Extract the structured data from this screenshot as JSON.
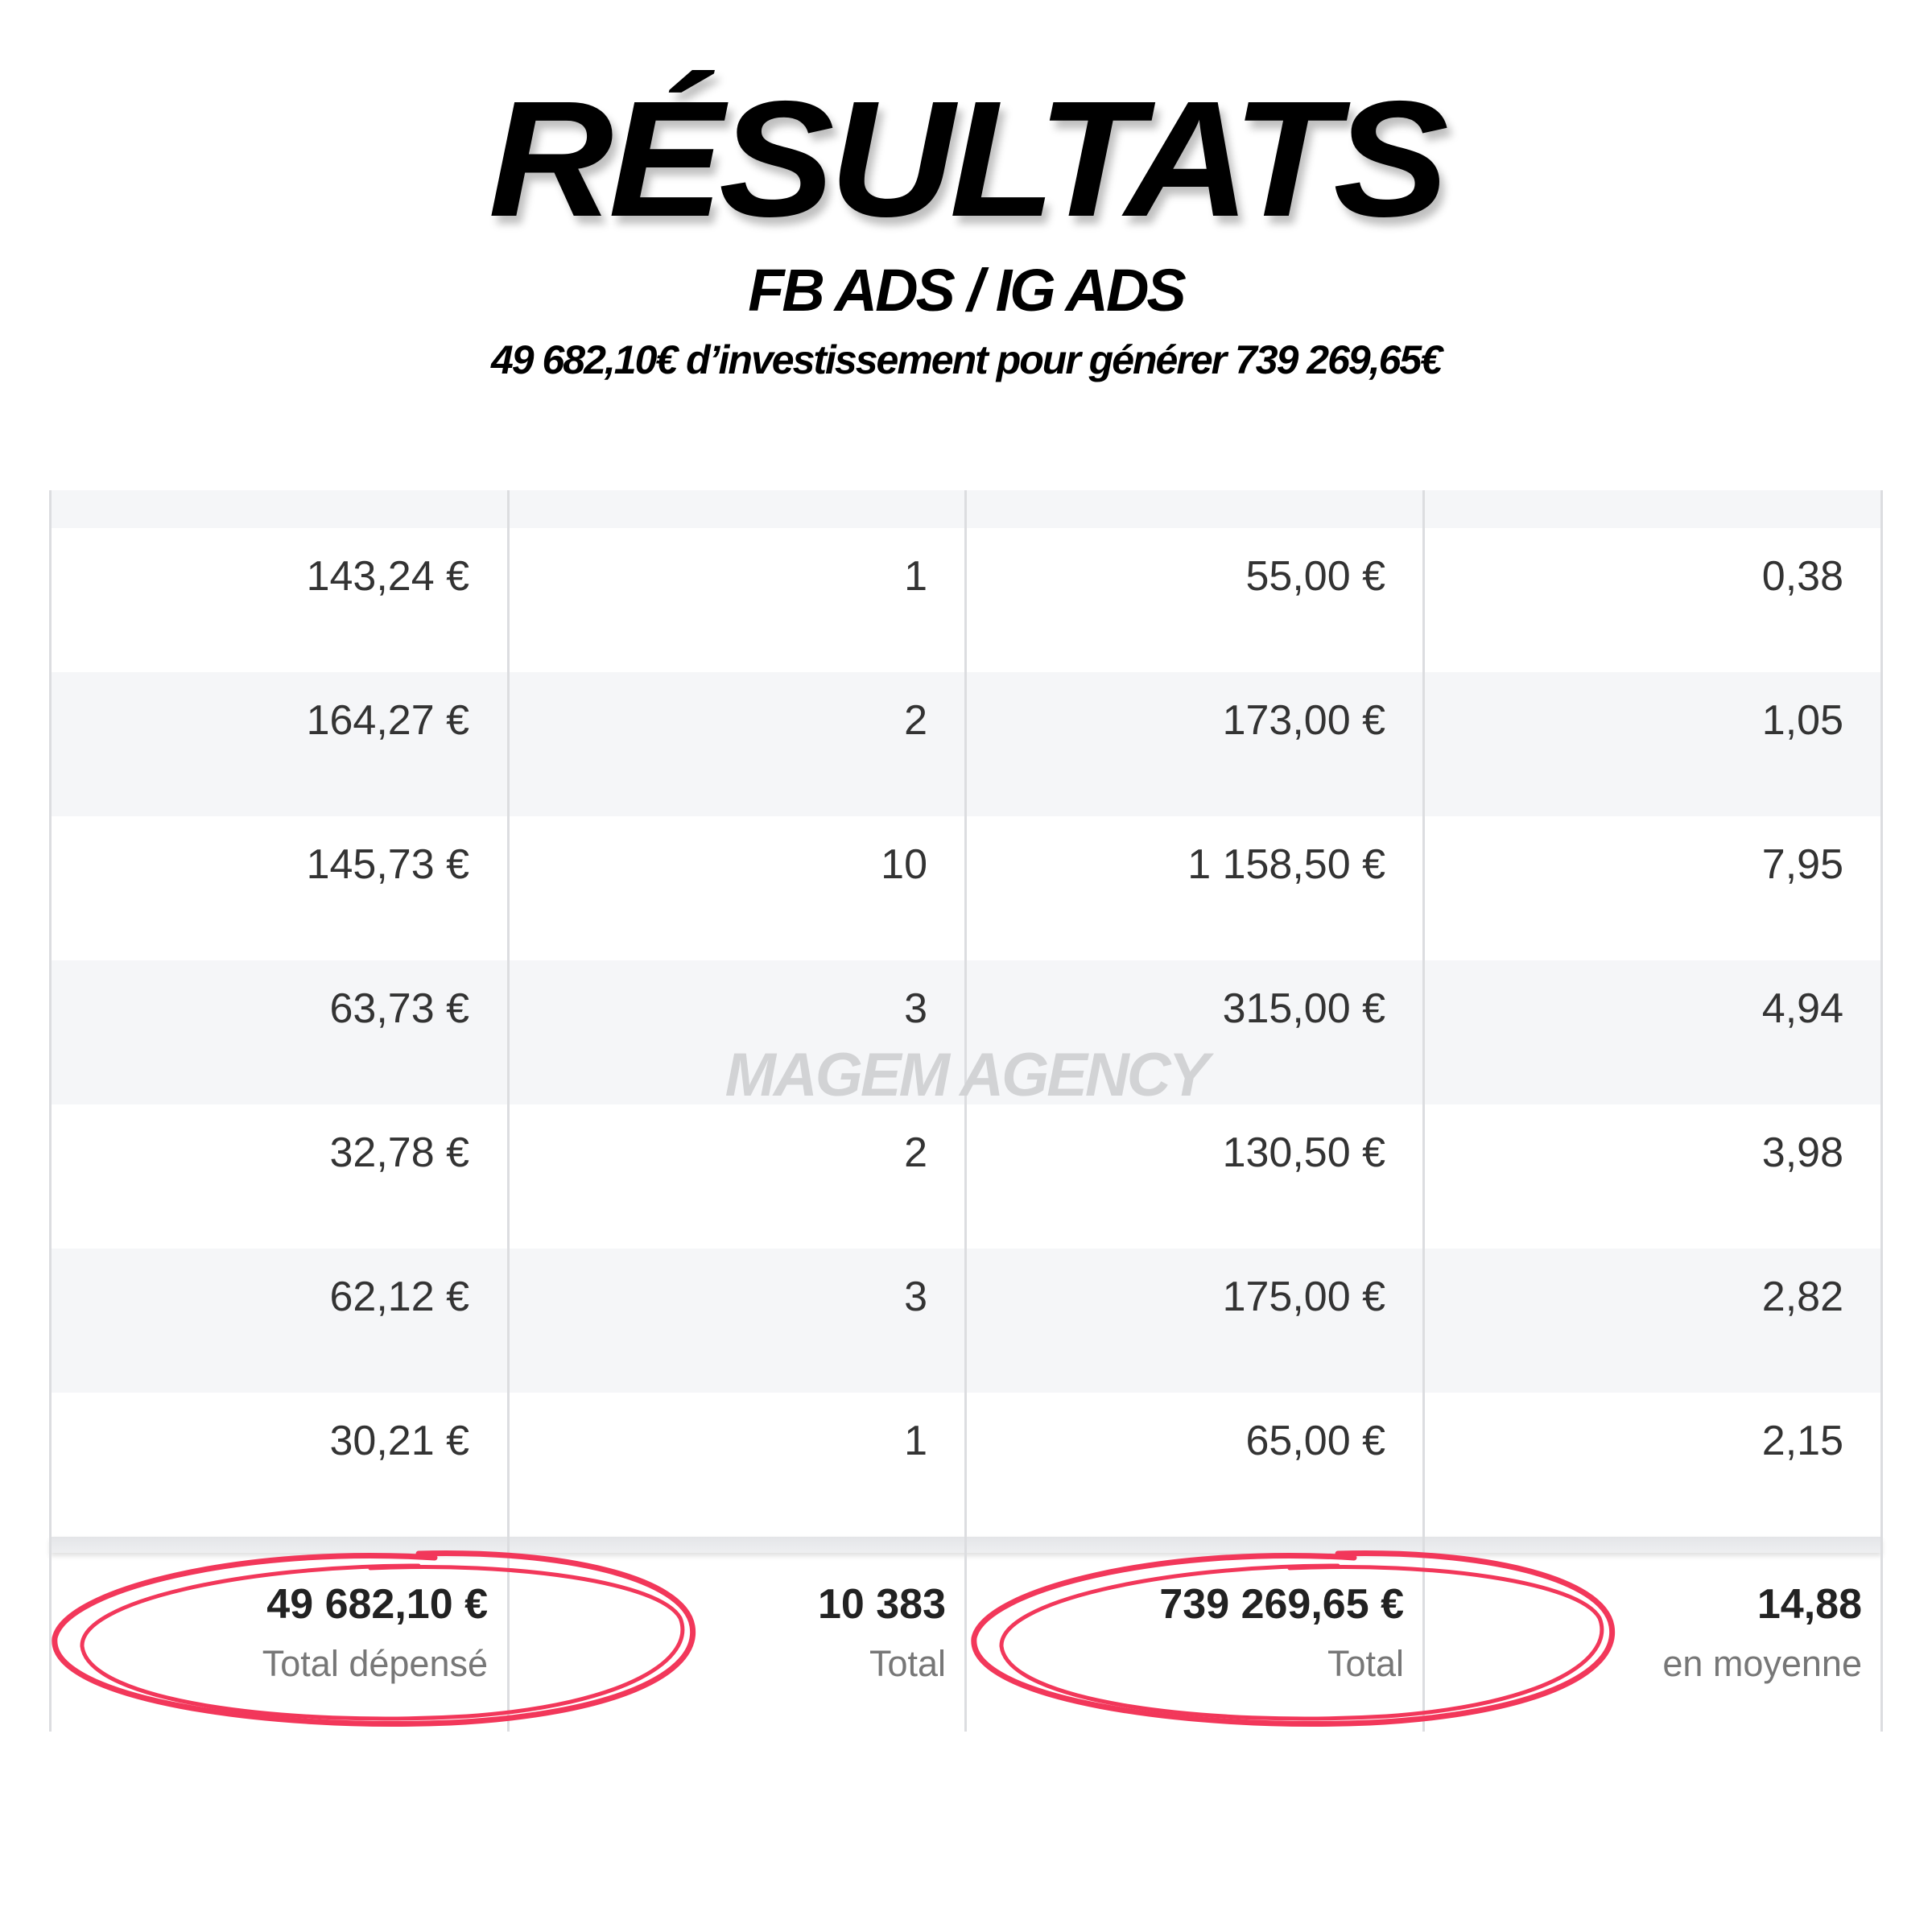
{
  "header": {
    "title": "RÉSULTATS",
    "subtitle": "FB ADS / IG ADS",
    "tagline": "49 682,10€ d’investissement pour générer 739 269,65€"
  },
  "watermark": "MAGEM AGENCY",
  "table": {
    "rows": [
      [
        "143,24 €",
        "1",
        "55,00 €",
        "0,38"
      ],
      [
        "164,27 €",
        "2",
        "173,00 €",
        "1,05"
      ],
      [
        "145,73 €",
        "10",
        "1 158,50 €",
        "7,95"
      ],
      [
        "63,73 €",
        "3",
        "315,00 €",
        "4,94"
      ],
      [
        "32,78 €",
        "2",
        "130,50 €",
        "3,98"
      ],
      [
        "62,12 €",
        "3",
        "175,00 €",
        "2,82"
      ],
      [
        "30,21 €",
        "1",
        "65,00 €",
        "2,15"
      ]
    ],
    "footer": [
      {
        "value": "49 682,10 €",
        "label": "Total dépensé"
      },
      {
        "value": "10 383",
        "label": "Total"
      },
      {
        "value": "739 269,65 €",
        "label": "Total"
      },
      {
        "value": "14,88",
        "label": "en moyenne"
      }
    ]
  },
  "colors": {
    "highlight_circle": "#f2375a",
    "row_alt": "#f5f6f8"
  }
}
